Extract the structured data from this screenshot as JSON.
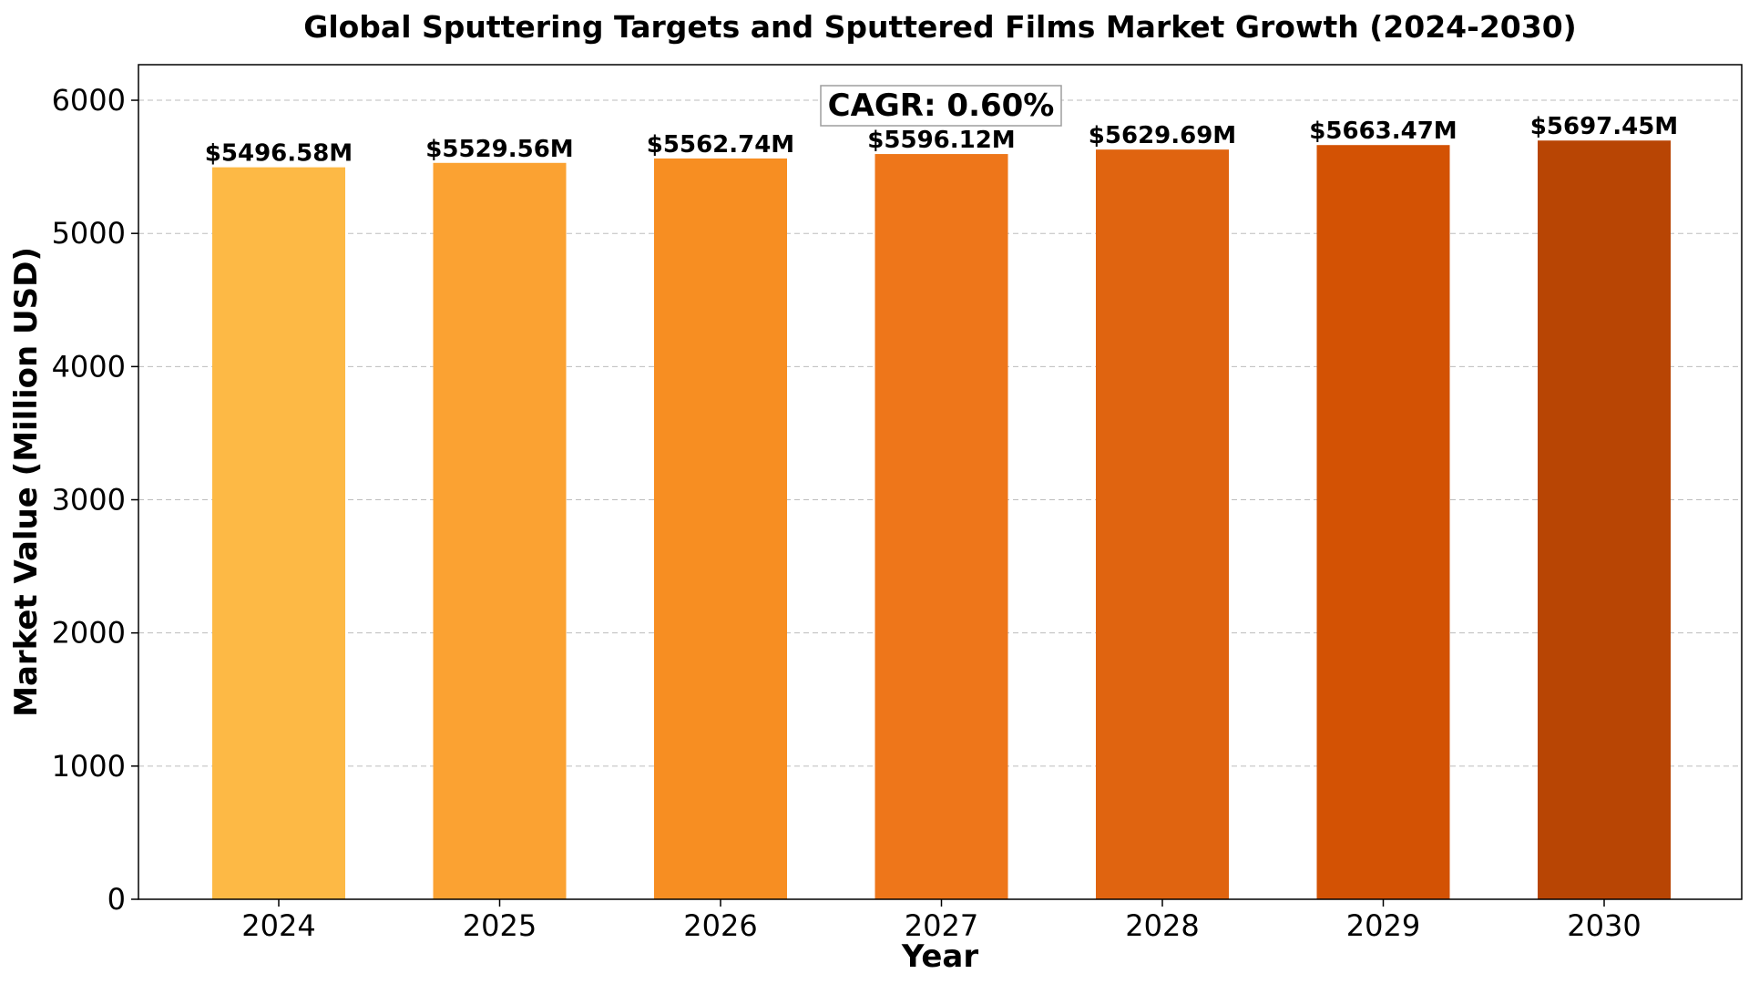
{
  "chart_data": {
    "type": "bar",
    "title": "Global Sputtering Targets and Sputtered Films Market Growth (2024-2030)",
    "xlabel": "Year",
    "ylabel": "Market Value (Million USD)",
    "categories": [
      "2024",
      "2025",
      "2026",
      "2027",
      "2028",
      "2029",
      "2030"
    ],
    "values": [
      5496.58,
      5529.56,
      5562.74,
      5596.12,
      5629.69,
      5663.47,
      5697.45
    ],
    "value_labels": [
      "$5496.58M",
      "$5529.56M",
      "$5562.74M",
      "$5596.12M",
      "$5629.69M",
      "$5663.47M",
      "$5697.45M"
    ],
    "bar_colors": [
      "#FDB945",
      "#FBA232",
      "#F78E22",
      "#EE761A",
      "#E06410",
      "#D35204",
      "#B84504"
    ],
    "yticks": [
      "0",
      "1000",
      "2000",
      "3000",
      "4000",
      "5000",
      "6000"
    ],
    "ylim": [
      0,
      6267
    ],
    "grid": "y-axis dashed",
    "legend": "none",
    "annotation": "CAGR: 0.60%"
  }
}
